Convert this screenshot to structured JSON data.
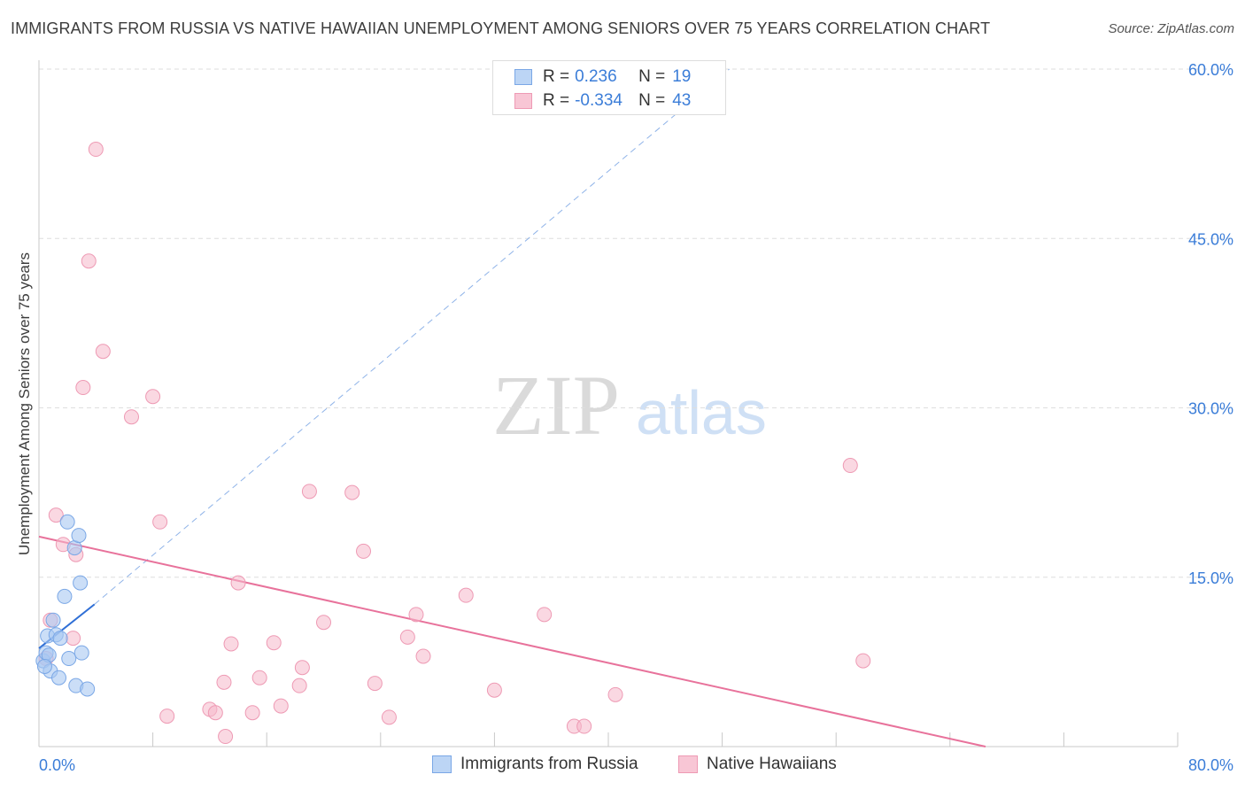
{
  "title": "IMMIGRANTS FROM RUSSIA VS NATIVE HAWAIIAN UNEMPLOYMENT AMONG SENIORS OVER 75 YEARS CORRELATION CHART",
  "source": "Source: ZipAtlas.com",
  "watermark": {
    "zip": "ZIP",
    "atlas": "atlas"
  },
  "colors": {
    "blue_fill": "#a9c8f2",
    "blue_stroke": "#7aa7e6",
    "blue_line": "#2f6fd6",
    "pink_fill": "#f6b8cb",
    "pink_stroke": "#ee9ab4",
    "pink_line": "#e8729b",
    "axis_label": "#3b7dd8",
    "grid": "#dedede"
  },
  "legend_top": {
    "rows": [
      {
        "r_label": "R =",
        "r_value": "0.236",
        "n_label": "N =",
        "n_value": "19"
      },
      {
        "r_label": "R =",
        "r_value": "-0.334",
        "n_label": "N =",
        "n_value": "43"
      }
    ]
  },
  "legend_bottom": {
    "items": [
      {
        "label": "Immigrants from Russia"
      },
      {
        "label": "Native Hawaiians"
      }
    ]
  },
  "chart_data": {
    "type": "scatter",
    "title": "IMMIGRANTS FROM RUSSIA VS NATIVE HAWAIIAN UNEMPLOYMENT AMONG SENIORS OVER 75 YEARS CORRELATION CHART",
    "xlabel": "",
    "ylabel": "Unemployment Among Seniors over 75 years",
    "xlim": [
      0,
      80
    ],
    "ylim": [
      0,
      60
    ],
    "x_tick_labels": [
      "0.0%",
      "80.0%"
    ],
    "y_ticks": [
      15,
      30,
      45,
      60
    ],
    "y_tick_labels": [
      "15.0%",
      "30.0%",
      "45.0%",
      "60.0%"
    ],
    "grid": true,
    "series": [
      {
        "name": "Immigrants from Russia",
        "points": [
          [
            0.3,
            7.6
          ],
          [
            0.5,
            8.3
          ],
          [
            0.6,
            9.8
          ],
          [
            0.7,
            8.1
          ],
          [
            0.8,
            6.7
          ],
          [
            1.0,
            11.2
          ],
          [
            1.2,
            9.9
          ],
          [
            1.4,
            6.1
          ],
          [
            1.5,
            9.6
          ],
          [
            1.8,
            13.3
          ],
          [
            2.0,
            19.9
          ],
          [
            2.1,
            7.8
          ],
          [
            2.5,
            17.6
          ],
          [
            2.6,
            5.4
          ],
          [
            2.8,
            18.7
          ],
          [
            2.9,
            14.5
          ],
          [
            3.0,
            8.3
          ],
          [
            3.4,
            5.1
          ],
          [
            0.4,
            7.1
          ]
        ],
        "trend": {
          "x0": 0,
          "y0": 8.7,
          "x1": 3.9,
          "y1": 12.6,
          "extended_x1": 48.5,
          "extended_y1": 60.0
        }
      },
      {
        "name": "Native Hawaiians",
        "points": [
          [
            4.0,
            52.9
          ],
          [
            3.5,
            43.0
          ],
          [
            4.5,
            35.0
          ],
          [
            3.1,
            31.8
          ],
          [
            8.0,
            31.0
          ],
          [
            6.5,
            29.2
          ],
          [
            1.2,
            20.5
          ],
          [
            8.5,
            19.9
          ],
          [
            1.7,
            17.9
          ],
          [
            2.6,
            17.0
          ],
          [
            19.0,
            22.6
          ],
          [
            22.0,
            22.5
          ],
          [
            22.8,
            17.3
          ],
          [
            14.0,
            14.5
          ],
          [
            30.0,
            13.4
          ],
          [
            26.5,
            11.7
          ],
          [
            35.5,
            11.7
          ],
          [
            0.8,
            11.2
          ],
          [
            20.0,
            11.0
          ],
          [
            2.4,
            9.6
          ],
          [
            13.5,
            9.1
          ],
          [
            16.5,
            9.2
          ],
          [
            25.9,
            9.7
          ],
          [
            27.0,
            8.0
          ],
          [
            18.5,
            7.0
          ],
          [
            15.5,
            6.1
          ],
          [
            13.0,
            5.7
          ],
          [
            18.3,
            5.4
          ],
          [
            23.6,
            5.6
          ],
          [
            32.0,
            5.0
          ],
          [
            40.5,
            4.6
          ],
          [
            17.0,
            3.6
          ],
          [
            12.0,
            3.3
          ],
          [
            12.4,
            3.0
          ],
          [
            15.0,
            3.0
          ],
          [
            9.0,
            2.7
          ],
          [
            24.6,
            2.6
          ],
          [
            37.6,
            1.8
          ],
          [
            38.3,
            1.8
          ],
          [
            13.1,
            0.9
          ],
          [
            57.0,
            24.9
          ],
          [
            57.9,
            7.6
          ],
          [
            0.5,
            7.8
          ]
        ],
        "trend": {
          "x0": 0,
          "y0": 18.6,
          "x1": 66.5,
          "y1": 0.0
        }
      }
    ]
  }
}
